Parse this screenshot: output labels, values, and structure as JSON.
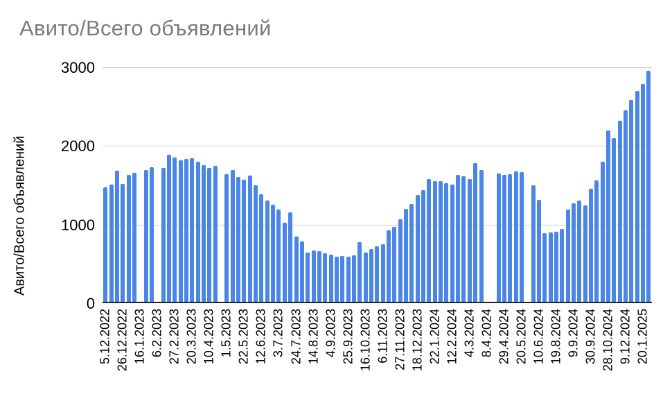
{
  "chart_data": {
    "type": "bar",
    "title": "Авито/Всего объявлений",
    "ylabel": "Авито/Всего объявлений",
    "xlabel": "",
    "ylim": [
      0,
      3000
    ],
    "yticks": [
      0,
      1000,
      2000,
      3000
    ],
    "grid": true,
    "legend": "none",
    "label_every": 3,
    "x_labels": [
      "5.12.2022",
      "26.12.2022",
      "16.1.2023",
      "6.2.2023",
      "27.2.2023",
      "20.3.2023",
      "10.4.2023",
      "1.5.2023",
      "22.5.2023",
      "12.6.2023",
      "3.7.2023",
      "24.7.2023",
      "14.8.2023",
      "4.9.2023",
      "25.9.2023",
      "16.10.2023",
      "6.11.2023",
      "27.11.2023",
      "18.12.2023",
      "22.1.2024",
      "12.2.2024",
      "4.3.2024",
      "8.4.2024",
      "29.4.2024",
      "20.5.2024",
      "10.6.2024",
      "19.8.2024",
      "9.9.2024",
      "30.9.2024",
      "28.10.2024",
      "9.12.2024",
      "20.1.2025"
    ],
    "values": [
      1466,
      1496,
      1682,
      1505,
      1620,
      1652,
      null,
      1688,
      1718,
      null,
      1712,
      1880,
      1845,
      1815,
      1828,
      1836,
      1792,
      1747,
      1709,
      1738,
      null,
      1630,
      1690,
      1595,
      1565,
      1617,
      1490,
      1372,
      1296,
      1246,
      1178,
      1016,
      1148,
      833,
      771,
      633,
      657,
      644,
      624,
      604,
      573,
      588,
      580,
      597,
      765,
      633,
      671,
      712,
      736,
      913,
      957,
      1060,
      1193,
      1252,
      1370,
      1429,
      1568,
      1547,
      1542,
      1518,
      1503,
      1621,
      1606,
      1568,
      1774,
      1686,
      null,
      null,
      1645,
      1627,
      1636,
      1665,
      1657,
      null,
      1494,
      1303,
      878,
      890,
      898,
      934,
      1185,
      1261,
      1297,
      1237,
      1450,
      1553,
      1792,
      2190,
      2093,
      2314,
      2447,
      2580,
      2697,
      2786,
      2954
    ],
    "colors": {
      "bar": "#4a86e8",
      "title_text": "#7b7b7b",
      "gridline": "#cccccc",
      "axis_line": "#212121",
      "tick_text": "#000000"
    }
  }
}
